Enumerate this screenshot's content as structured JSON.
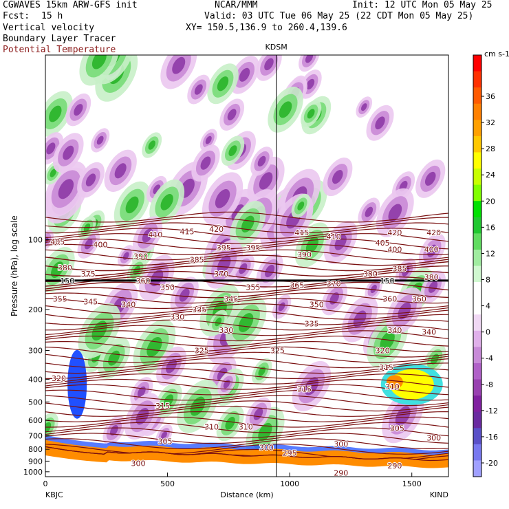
{
  "header": {
    "model": "CGWAVES 15km ARW-GFS init",
    "org": "NCAR/MMM",
    "init": "Init: 12 UTC Mon 05 May 25",
    "fcst_label": "Fcst:",
    "fcst_value": "15 h",
    "valid": "Valid: 03 UTC Tue 06 May 25 (22 CDT Mon 05 May 25)",
    "field1": "Vertical velocity",
    "field2": "Boundary Layer Tracer",
    "field3": "Potential Temperature",
    "xy": "XY= 150.5,136.9 to 260.4,139.6"
  },
  "colors": {
    "theta": "#7a1010",
    "down_light": "#ebc8f0",
    "down_mid": "#c98ad6",
    "down_dark": "#8e3aa6",
    "up_light": "#c8f0c8",
    "up_mid": "#78dc78",
    "up_dark": "#28b428",
    "terrain": "#ff8c00",
    "tracer_blue": "#2050ff",
    "tracer_cyan": "#40e0e0",
    "tracer_yellow": "#ffff00"
  },
  "chart_data": {
    "type": "heatmap",
    "title": "",
    "xlabel": "Distance (km)",
    "ylabel": "Pressure (hPa), log scale",
    "xlim": [
      0,
      1650
    ],
    "ylim": [
      1050,
      16
    ],
    "x_ticks": [
      0,
      500,
      1000,
      1500
    ],
    "y_ticks": [
      100,
      200,
      300,
      400,
      500,
      600,
      700,
      800,
      900,
      1000
    ],
    "top_station": "KDSM",
    "top_station_x": 945,
    "left_station": "KBJC",
    "right_station": "KIND",
    "trop_label": "150",
    "theta_labels": [
      {
        "x": 55,
        "p": 395,
        "v": "320"
      },
      {
        "x": 1380,
        "p": 300,
        "v": "320"
      },
      {
        "x": 640,
        "p": 300,
        "v": "325"
      },
      {
        "x": 950,
        "p": 300,
        "v": "325"
      },
      {
        "x": 1395,
        "p": 355,
        "v": "315"
      },
      {
        "x": 1060,
        "p": 440,
        "v": "315"
      },
      {
        "x": 480,
        "p": 520,
        "v": "315"
      },
      {
        "x": 680,
        "p": 640,
        "v": "310"
      },
      {
        "x": 820,
        "p": 640,
        "v": "310"
      },
      {
        "x": 1420,
        "p": 430,
        "v": "310"
      },
      {
        "x": 490,
        "p": 740,
        "v": "305"
      },
      {
        "x": 1440,
        "p": 650,
        "v": "305"
      },
      {
        "x": 905,
        "p": 785,
        "v": "300"
      },
      {
        "x": 1210,
        "p": 760,
        "v": "300"
      },
      {
        "x": 1590,
        "p": 715,
        "v": "300"
      },
      {
        "x": 380,
        "p": 920,
        "v": "300"
      },
      {
        "x": 1000,
        "p": 830,
        "v": "295"
      },
      {
        "x": 1210,
        "p": 1010,
        "v": "290"
      },
      {
        "x": 1430,
        "p": 940,
        "v": "290"
      },
      {
        "x": 540,
        "p": 215,
        "v": "330"
      },
      {
        "x": 740,
        "p": 245,
        "v": "330"
      },
      {
        "x": 1090,
        "p": 230,
        "v": "335"
      },
      {
        "x": 630,
        "p": 200,
        "v": "335"
      },
      {
        "x": 1430,
        "p": 245,
        "v": "340"
      },
      {
        "x": 1570,
        "p": 250,
        "v": "340"
      },
      {
        "x": 340,
        "p": 190,
        "v": "340"
      },
      {
        "x": 185,
        "p": 185,
        "v": "345"
      },
      {
        "x": 760,
        "p": 180,
        "v": "345"
      },
      {
        "x": 1110,
        "p": 190,
        "v": "350"
      },
      {
        "x": 500,
        "p": 160,
        "v": "350"
      },
      {
        "x": 1410,
        "p": 180,
        "v": "360"
      },
      {
        "x": 1530,
        "p": 180,
        "v": "360"
      },
      {
        "x": 60,
        "p": 180,
        "v": "355"
      },
      {
        "x": 850,
        "p": 160,
        "v": "355"
      },
      {
        "x": 400,
        "p": 150,
        "v": "360"
      },
      {
        "x": 1030,
        "p": 157,
        "v": "365"
      },
      {
        "x": 1180,
        "p": 155,
        "v": "370"
      },
      {
        "x": 720,
        "p": 140,
        "v": "370"
      },
      {
        "x": 80,
        "p": 132,
        "v": "380"
      },
      {
        "x": 175,
        "p": 140,
        "v": "375"
      },
      {
        "x": 1330,
        "p": 140,
        "v": "380"
      },
      {
        "x": 1580,
        "p": 145,
        "v": "380"
      },
      {
        "x": 1450,
        "p": 133,
        "v": "385"
      },
      {
        "x": 620,
        "p": 122,
        "v": "385"
      },
      {
        "x": 390,
        "p": 118,
        "v": "390"
      },
      {
        "x": 1060,
        "p": 116,
        "v": "390"
      },
      {
        "x": 730,
        "p": 108,
        "v": "395"
      },
      {
        "x": 850,
        "p": 108,
        "v": "395"
      },
      {
        "x": 225,
        "p": 105,
        "v": "400"
      },
      {
        "x": 1430,
        "p": 110,
        "v": "400"
      },
      {
        "x": 1580,
        "p": 110,
        "v": "400"
      },
      {
        "x": 50,
        "p": 102,
        "v": "405"
      },
      {
        "x": 1380,
        "p": 103,
        "v": "405"
      },
      {
        "x": 450,
        "p": 95,
        "v": "410"
      },
      {
        "x": 1180,
        "p": 97,
        "v": "410"
      },
      {
        "x": 580,
        "p": 92,
        "v": "415"
      },
      {
        "x": 1050,
        "p": 93,
        "v": "415"
      },
      {
        "x": 700,
        "p": 90,
        "v": "420"
      },
      {
        "x": 1430,
        "p": 93,
        "v": "420"
      },
      {
        "x": 1590,
        "p": 93,
        "v": "420"
      }
    ],
    "colorbar": {
      "unit": "cm s-1",
      "labels": [
        "36",
        "32",
        "28",
        "24",
        "20",
        "16",
        "12",
        "8",
        "4",
        "0",
        "-4",
        "-8",
        "-12",
        "-16",
        "-20"
      ],
      "colors": [
        "#ff0000",
        "#ff3000",
        "#ff5a00",
        "#ff8000",
        "#ffa000",
        "#ffc800",
        "#ffff00",
        "#c8ff00",
        "#80ff00",
        "#00e000",
        "#20c830",
        "#60dc60",
        "#a0eca0",
        "#d0f8d0",
        "#ffffff",
        "#ffffff",
        "#f0d8f4",
        "#e0b0ea",
        "#c88ad8",
        "#b060c8",
        "#9840b0",
        "#8020a0",
        "#6a2aa0",
        "#5a50c8",
        "#7878f0",
        "#a0a0ff"
      ]
    }
  }
}
